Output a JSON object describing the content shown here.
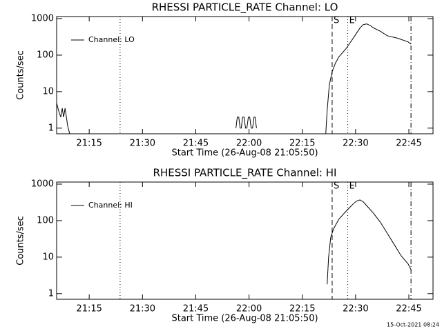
{
  "chart_data": [
    {
      "type": "line",
      "title": "RHESSI PARTICLE_RATE Channel: LO",
      "x_label": "Start Time (26-Aug-08 21:05:50)",
      "y_label": "Counts/sec",
      "log_y": true,
      "legend": "upper-left",
      "xlim": [
        5.83,
        111.8
      ],
      "ylim": [
        0.7,
        1140
      ],
      "xticks": [
        {
          "value": 15,
          "label": "21:15"
        },
        {
          "value": 30,
          "label": "21:30"
        },
        {
          "value": 45,
          "label": "21:45"
        },
        {
          "value": 60,
          "label": "22:00"
        },
        {
          "value": 75,
          "label": "22:15"
        },
        {
          "value": 90,
          "label": "22:30"
        },
        {
          "value": 105,
          "label": "22:45"
        }
      ],
      "yticks": [
        1,
        10,
        100,
        1000
      ],
      "vlines": [
        {
          "x": 23.7,
          "style": "dotted"
        },
        {
          "x": 83.4,
          "style": "dashed",
          "label": "S"
        },
        {
          "x": 87.8,
          "style": "dotted",
          "label": "E"
        },
        {
          "x": 105.6,
          "style": "dashdot"
        }
      ],
      "series": [
        {
          "name": "Channel: LO",
          "color": "#000000",
          "x": [
            5.8,
            6.4,
            7.0,
            7.4,
            7.8,
            8.2,
            8.6,
            8.9,
            9.5,
            30,
            56.3,
            56.7,
            57.1,
            57.5,
            57.8,
            58.2,
            58.6,
            59.0,
            59.4,
            59.8,
            60.2,
            60.6,
            61.0,
            61.4,
            61.7,
            62.1,
            70,
            81.6,
            82.0,
            82.6,
            83.4,
            84.3,
            85.3,
            87.3,
            89.2,
            91.2,
            92.1,
            93.1,
            94.1,
            95.0,
            97.0,
            98.9,
            101.9,
            104.8,
            105.6
          ],
          "values": [
            5,
            3,
            2,
            3.5,
            2,
            3.5,
            2,
            1.2,
            0.7,
            null,
            1,
            2,
            2,
            1,
            1,
            2,
            2,
            1,
            1,
            2,
            2,
            1,
            1,
            2,
            2,
            1,
            null,
            0.7,
            3,
            15,
            35,
            60,
            90,
            150,
            280,
            550,
            680,
            720,
            650,
            560,
            450,
            340,
            290,
            230,
            200
          ]
        }
      ]
    },
    {
      "type": "line",
      "title": "RHESSI PARTICLE_RATE Channel: HI",
      "x_label": "Start Time (26-Aug-08 21:05:50)",
      "y_label": "Counts/sec",
      "log_y": true,
      "legend": "upper-left",
      "xlim": [
        5.83,
        111.8
      ],
      "ylim": [
        0.7,
        1140
      ],
      "xticks": [
        {
          "value": 15,
          "label": "21:15"
        },
        {
          "value": 30,
          "label": "21:30"
        },
        {
          "value": 45,
          "label": "21:45"
        },
        {
          "value": 60,
          "label": "22:00"
        },
        {
          "value": 75,
          "label": "22:15"
        },
        {
          "value": 90,
          "label": "22:30"
        },
        {
          "value": 105,
          "label": "22:45"
        }
      ],
      "yticks": [
        1,
        10,
        100,
        1000
      ],
      "vlines": [
        {
          "x": 23.7,
          "style": "dotted"
        },
        {
          "x": 83.4,
          "style": "dashed",
          "label": "S"
        },
        {
          "x": 87.8,
          "style": "dotted",
          "label": "E"
        },
        {
          "x": 105.6,
          "style": "dashdot"
        }
      ],
      "series": [
        {
          "name": "Channel: HI",
          "color": "#000000",
          "x": [
            82.0,
            82.4,
            83.0,
            83.8,
            85.3,
            87.3,
            89.2,
            90.2,
            91.2,
            92.1,
            93.1,
            95.0,
            97.0,
            98.9,
            100.9,
            102.8,
            104.8,
            105.6
          ],
          "values": [
            1.8,
            10,
            35,
            60,
            110,
            180,
            280,
            340,
            370,
            330,
            260,
            160,
            90,
            45,
            22,
            11,
            6.5,
            4.5
          ]
        }
      ]
    }
  ],
  "footer": "15-Oct-2021 08:24"
}
